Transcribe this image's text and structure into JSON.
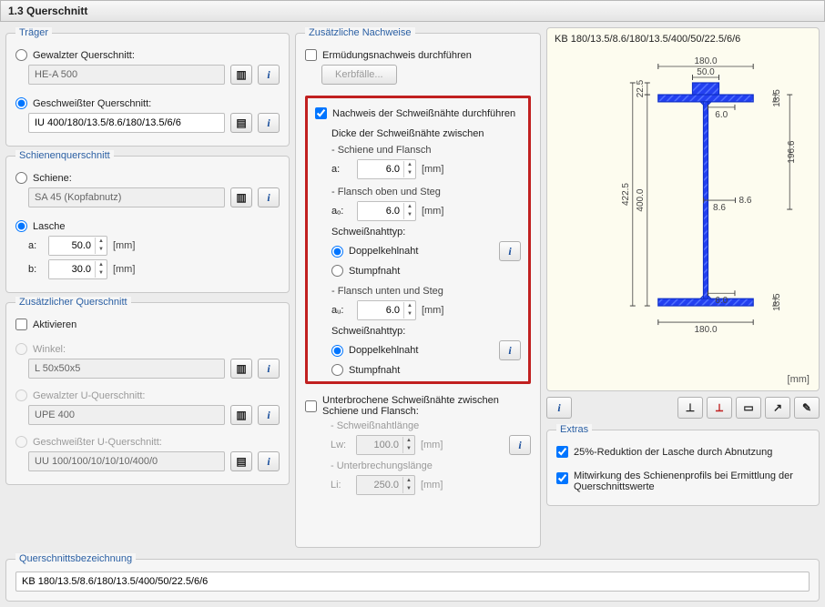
{
  "window": {
    "title": "1.3 Querschnitt"
  },
  "traeger": {
    "legend": "Träger",
    "gewalzt_label": "Gewalzter Querschnitt:",
    "gewalzt_value": "HE-A 500",
    "geschw_label": "Geschweißter Querschnitt:",
    "geschw_value": "IU 400/180/13.5/8.6/180/13.5/6/6",
    "selected": "geschw"
  },
  "schiene": {
    "legend": "Schienenquerschnitt",
    "schiene_label": "Schiene:",
    "schiene_value": "SA 45 (Kopfabnutz)",
    "lasche_label": "Lasche",
    "a_label": "a:",
    "a_value": "50.0",
    "a_unit": "[mm]",
    "b_label": "b:",
    "b_value": "30.0",
    "b_unit": "[mm]",
    "selected": "lasche"
  },
  "zusatz_qs": {
    "legend": "Zusätzlicher Querschnitt",
    "aktivieren_label": "Aktivieren",
    "aktivieren": false,
    "winkel_label": "Winkel:",
    "winkel_value": "L 50x50x5",
    "gew_u_label": "Gewalzter U-Querschnitt:",
    "gew_u_value": "UPE 400",
    "ges_u_label": "Geschweißter U-Querschnitt:",
    "ges_u_value": "UU 100/100/10/10/10/400/0"
  },
  "bez": {
    "legend": "Querschnittsbezeichnung",
    "value": "KB 180/13.5/8.6/180/13.5/400/50/22.5/6/6"
  },
  "nachweise": {
    "legend": "Zusätzliche Nachweise",
    "ermuedung_label": "Ermüdungsnachweis durchführen",
    "ermuedung": false,
    "kerbfaelle_label": "Kerbfälle...",
    "schweiss_label": "Nachweis der Schweißnähte durchführen",
    "schweiss": true,
    "dicke_header": "Dicke der Schweißnähte zwischen",
    "sch_flansch_label": "- Schiene und Flansch",
    "a_label": "a:",
    "a_value": "6.0",
    "a_unit": "[mm]",
    "fl_oben_label": "- Flansch oben und Steg",
    "ao_label": "aₒ:",
    "ao_value": "6.0",
    "ao_unit": "[mm]",
    "typ_label": "Schweißnahttyp:",
    "doppel_label": "Doppelkehlnaht",
    "stumpf_label": "Stumpfnaht",
    "fl_unten_label": "- Flansch unten und Steg",
    "au_label": "aᵤ:",
    "au_value": "6.0",
    "au_unit": "[mm]",
    "interrupt_label": "Unterbrochene Schweißnähte zwischen Schiene und Flansch:",
    "interrupt": false,
    "lw_caption": "- Schweißnahtlänge",
    "lw_label": "Lw:",
    "lw_value": "100.0",
    "lw_unit": "[mm]",
    "li_caption": "- Unterbrechungslänge",
    "li_label": "Li:",
    "li_value": "250.0",
    "li_unit": "[mm]"
  },
  "diagram": {
    "caption": "KB 180/13.5/8.6/180/13.5/400/50/22.5/6/6",
    "unit": "[mm]",
    "top_width": "180.0",
    "top_plate_w": "50.0",
    "top_plate_h": "22.5",
    "flange_t": "13.5",
    "web_t": "8.6",
    "clear_h": "196.6",
    "total_h_outer": "422.5",
    "total_h_inner": "400.0",
    "a_top": "6.0",
    "a_bot": "6.0",
    "bot_width": "180.0",
    "hatch_color": "#2340f0",
    "outline_color": "#1030c8",
    "bg_color": "#fdfcef",
    "dim_color": "#444444"
  },
  "extras": {
    "legend": "Extras",
    "red_label": "25%-Reduktion der Lasche durch Abnutzung",
    "red": true,
    "mit_label": "Mitwirkung des Schienenprofils bei Ermittlung der Querschnittswerte",
    "mit": true
  },
  "icons": {
    "lib": "▥",
    "pick": "▤",
    "info": "i"
  }
}
